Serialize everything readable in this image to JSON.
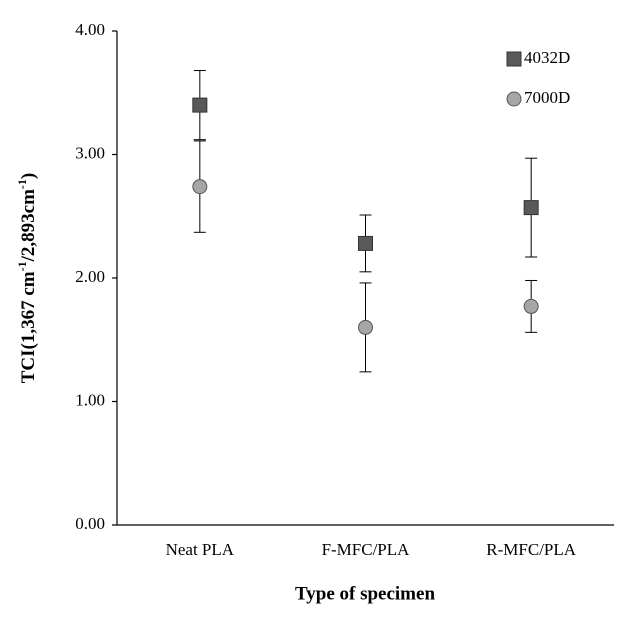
{
  "chart_data": {
    "type": "scatter",
    "y_label_parts": [
      "TCI(1,367 cm",
      "-1",
      "/2,893cm",
      "-1",
      ")"
    ],
    "x_label": "Type of specimen",
    "categories": [
      "Neat PLA",
      "F-MFC/PLA",
      "R-MFC/PLA"
    ],
    "series": [
      {
        "name": "4032D",
        "color": "#595959",
        "marker": "square",
        "values": [
          3.4,
          2.28,
          2.57
        ],
        "errors": [
          0.28,
          0.23,
          0.4
        ]
      },
      {
        "name": "7000D",
        "color": "#a6a6a6",
        "marker": "circle",
        "values": [
          2.74,
          1.6,
          1.77
        ],
        "errors": [
          0.37,
          0.36,
          0.21
        ]
      }
    ],
    "ylim": [
      0,
      4
    ],
    "yticks": [
      {
        "value": 0,
        "label": "0.00"
      },
      {
        "value": 1,
        "label": "1.00"
      },
      {
        "value": 2,
        "label": "2.00"
      },
      {
        "value": 3,
        "label": "3.00"
      },
      {
        "value": 4,
        "label": "4.00"
      }
    ],
    "legend": "top-right",
    "grid": false
  }
}
